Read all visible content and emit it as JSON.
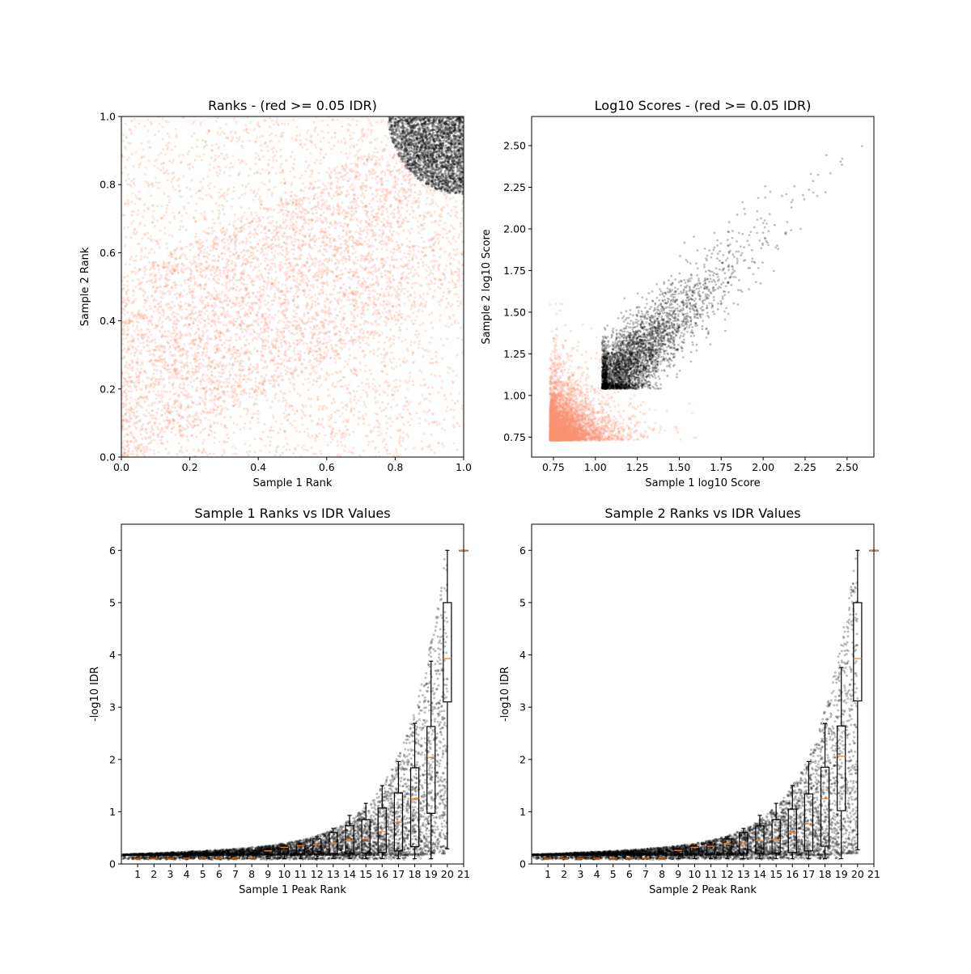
{
  "chart_data": [
    {
      "type": "scatter",
      "title": "Ranks - (red >= 0.05 IDR)",
      "xlabel": "Sample 1 Rank",
      "ylabel": "Sample 2 Rank",
      "xlim": [
        0,
        1
      ],
      "ylim": [
        0,
        1
      ],
      "xticks": [
        "0.0",
        "0.2",
        "0.4",
        "0.6",
        "0.8",
        "1.0"
      ],
      "yticks": [
        "0.0",
        "0.2",
        "0.4",
        "0.6",
        "0.8",
        "1.0"
      ],
      "series": [
        {
          "color": "#fc9272",
          "alpha": 0.3
        },
        {
          "color": "#000000",
          "alpha": 0.3
        }
      ],
      "grid": false
    },
    {
      "type": "scatter",
      "title": "Log10 Scores - (red >= 0.05 IDR)",
      "xlabel": "Sample 1 log10 Score",
      "ylabel": "Sample 2 log10 Score",
      "xlim": [
        0.62,
        2.66
      ],
      "ylim": [
        0.63,
        2.675
      ],
      "xticks": [
        "0.75",
        "1.00",
        "1.25",
        "1.50",
        "1.75",
        "2.00",
        "2.25",
        "2.50"
      ],
      "yticks": [
        "0.75",
        "1.00",
        "1.25",
        "1.50",
        "1.75",
        "2.00",
        "2.25",
        "2.50"
      ],
      "series": [
        {
          "color": "#fc9272",
          "alpha": 0.3
        },
        {
          "color": "#000000",
          "alpha": 0.3
        }
      ],
      "grid": false
    },
    {
      "type": "box",
      "title": "Sample 1 Ranks vs IDR Values",
      "xlabel": "Sample 1 Peak Rank",
      "ylabel": "-log10 IDR",
      "xlim": [
        0,
        21
      ],
      "ylim": [
        0,
        6.5
      ],
      "xticks": [
        "1",
        "2",
        "3",
        "4",
        "5",
        "6",
        "7",
        "8",
        "9",
        "10",
        "11",
        "12",
        "13",
        "14",
        "15",
        "16",
        "17",
        "18",
        "19",
        "20",
        "21"
      ],
      "yticks": [
        "0",
        "1",
        "2",
        "3",
        "4",
        "5",
        "6"
      ],
      "boxes": [
        {
          "pos": 1,
          "whislo": 0.1,
          "q1": 0.1,
          "med": 0.11,
          "q3": 0.12,
          "whishi": 0.13
        },
        {
          "pos": 2,
          "whislo": 0.1,
          "q1": 0.1,
          "med": 0.11,
          "q3": 0.12,
          "whishi": 0.13
        },
        {
          "pos": 3,
          "whislo": 0.1,
          "q1": 0.1,
          "med": 0.11,
          "q3": 0.12,
          "whishi": 0.13
        },
        {
          "pos": 4,
          "whislo": 0.1,
          "q1": 0.1,
          "med": 0.11,
          "q3": 0.13,
          "whishi": 0.14
        },
        {
          "pos": 5,
          "whislo": 0.1,
          "q1": 0.1,
          "med": 0.11,
          "q3": 0.16,
          "whishi": 0.18
        },
        {
          "pos": 6,
          "whislo": 0.1,
          "q1": 0.1,
          "med": 0.11,
          "q3": 0.17,
          "whishi": 0.19
        },
        {
          "pos": 7,
          "whislo": 0.1,
          "q1": 0.1,
          "med": 0.11,
          "q3": 0.18,
          "whishi": 0.2
        },
        {
          "pos": 8,
          "whislo": 0.1,
          "q1": 0.1,
          "med": 0.11,
          "q3": 0.2,
          "whishi": 0.22
        },
        {
          "pos": 9,
          "whislo": 0.1,
          "q1": 0.18,
          "med": 0.25,
          "q3": 0.28,
          "whishi": 0.3
        },
        {
          "pos": 10,
          "whislo": 0.1,
          "q1": 0.19,
          "med": 0.32,
          "q3": 0.33,
          "whishi": 0.35
        },
        {
          "pos": 11,
          "whislo": 0.1,
          "q1": 0.19,
          "med": 0.35,
          "q3": 0.36,
          "whishi": 0.4
        },
        {
          "pos": 12,
          "whislo": 0.1,
          "q1": 0.19,
          "med": 0.37,
          "q3": 0.48,
          "whishi": 0.52
        },
        {
          "pos": 13,
          "whislo": 0.1,
          "q1": 0.2,
          "med": 0.4,
          "q3": 0.6,
          "whishi": 0.68
        },
        {
          "pos": 14,
          "whislo": 0.1,
          "q1": 0.2,
          "med": 0.45,
          "q3": 0.73,
          "whishi": 0.93
        },
        {
          "pos": 15,
          "whislo": 0.1,
          "q1": 0.21,
          "med": 0.48,
          "q3": 0.85,
          "whishi": 1.16
        },
        {
          "pos": 16,
          "whislo": 0.1,
          "q1": 0.22,
          "med": 0.62,
          "q3": 1.07,
          "whishi": 1.5
        },
        {
          "pos": 17,
          "whislo": 0.1,
          "q1": 0.25,
          "med": 0.8,
          "q3": 1.36,
          "whishi": 1.96
        },
        {
          "pos": 18,
          "whislo": 0.1,
          "q1": 0.33,
          "med": 1.25,
          "q3": 1.84,
          "whishi": 2.69
        },
        {
          "pos": 19,
          "whislo": 0.1,
          "q1": 0.97,
          "med": 2.04,
          "q3": 2.63,
          "whishi": 3.88
        },
        {
          "pos": 20,
          "whislo": 0.29,
          "q1": 3.1,
          "med": 3.93,
          "q3": 5.0,
          "whishi": 6.0
        },
        {
          "pos": 21,
          "whislo": 6.0,
          "q1": 6.0,
          "med": 6.0,
          "q3": 6.0,
          "whishi": 6.0
        }
      ],
      "point_color": "#000000",
      "median_color": "#ff7f0e"
    },
    {
      "type": "box",
      "title": "Sample 2 Ranks vs IDR Values",
      "xlabel": "Sample 2 Peak Rank",
      "ylabel": "-log10 IDR",
      "xlim": [
        0,
        21
      ],
      "ylim": [
        0,
        6.5
      ],
      "xticks": [
        "1",
        "2",
        "3",
        "4",
        "5",
        "6",
        "7",
        "8",
        "9",
        "10",
        "11",
        "12",
        "13",
        "14",
        "15",
        "16",
        "17",
        "18",
        "19",
        "20",
        "21"
      ],
      "yticks": [
        "0",
        "1",
        "2",
        "3",
        "4",
        "5",
        "6"
      ],
      "boxes": [
        {
          "pos": 1,
          "whislo": 0.1,
          "q1": 0.1,
          "med": 0.11,
          "q3": 0.12,
          "whishi": 0.13
        },
        {
          "pos": 2,
          "whislo": 0.1,
          "q1": 0.1,
          "med": 0.11,
          "q3": 0.12,
          "whishi": 0.13
        },
        {
          "pos": 3,
          "whislo": 0.1,
          "q1": 0.1,
          "med": 0.11,
          "q3": 0.12,
          "whishi": 0.13
        },
        {
          "pos": 4,
          "whislo": 0.1,
          "q1": 0.1,
          "med": 0.11,
          "q3": 0.13,
          "whishi": 0.14
        },
        {
          "pos": 5,
          "whislo": 0.1,
          "q1": 0.1,
          "med": 0.11,
          "q3": 0.16,
          "whishi": 0.18
        },
        {
          "pos": 6,
          "whislo": 0.1,
          "q1": 0.1,
          "med": 0.11,
          "q3": 0.17,
          "whishi": 0.19
        },
        {
          "pos": 7,
          "whislo": 0.1,
          "q1": 0.1,
          "med": 0.11,
          "q3": 0.18,
          "whishi": 0.2
        },
        {
          "pos": 8,
          "whislo": 0.1,
          "q1": 0.1,
          "med": 0.11,
          "q3": 0.2,
          "whishi": 0.22
        },
        {
          "pos": 9,
          "whislo": 0.1,
          "q1": 0.18,
          "med": 0.26,
          "q3": 0.28,
          "whishi": 0.3
        },
        {
          "pos": 10,
          "whislo": 0.1,
          "q1": 0.19,
          "med": 0.32,
          "q3": 0.33,
          "whishi": 0.35
        },
        {
          "pos": 11,
          "whislo": 0.1,
          "q1": 0.19,
          "med": 0.34,
          "q3": 0.36,
          "whishi": 0.4
        },
        {
          "pos": 12,
          "whislo": 0.1,
          "q1": 0.19,
          "med": 0.38,
          "q3": 0.48,
          "whishi": 0.52
        },
        {
          "pos": 13,
          "whislo": 0.1,
          "q1": 0.2,
          "med": 0.4,
          "q3": 0.6,
          "whishi": 0.68
        },
        {
          "pos": 14,
          "whislo": 0.1,
          "q1": 0.2,
          "med": 0.45,
          "q3": 0.73,
          "whishi": 0.93
        },
        {
          "pos": 15,
          "whislo": 0.1,
          "q1": 0.21,
          "med": 0.47,
          "q3": 0.85,
          "whishi": 1.16
        },
        {
          "pos": 16,
          "whislo": 0.1,
          "q1": 0.22,
          "med": 0.6,
          "q3": 1.05,
          "whishi": 1.5
        },
        {
          "pos": 17,
          "whislo": 0.1,
          "q1": 0.25,
          "med": 0.77,
          "q3": 1.34,
          "whishi": 1.96
        },
        {
          "pos": 18,
          "whislo": 0.1,
          "q1": 0.34,
          "med": 1.25,
          "q3": 1.85,
          "whishi": 2.69
        },
        {
          "pos": 19,
          "whislo": 0.1,
          "q1": 1.02,
          "med": 2.06,
          "q3": 2.64,
          "whishi": 3.76
        },
        {
          "pos": 20,
          "whislo": 0.27,
          "q1": 3.12,
          "med": 3.93,
          "q3": 5.0,
          "whishi": 6.0
        },
        {
          "pos": 21,
          "whislo": 6.0,
          "q1": 6.0,
          "med": 6.0,
          "q3": 6.0,
          "whishi": 6.0
        }
      ],
      "point_color": "#000000",
      "median_color": "#ff7f0e"
    }
  ]
}
